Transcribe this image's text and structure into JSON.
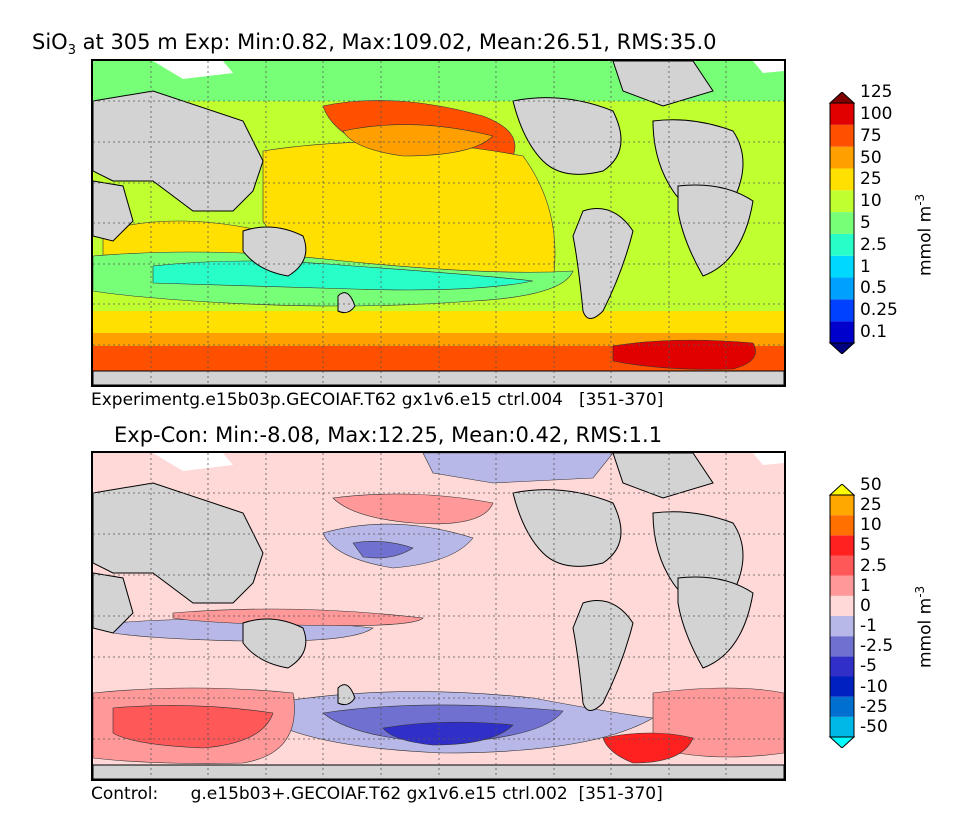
{
  "top_panel": {
    "title_species": "SiO",
    "title_sub": "3",
    "title_rest": " at 305 m Exp: Min:0.82, Max:109.02, Mean:26.51, RMS:35.0",
    "caption": "Experimentg.e15b03p.GECOIAF.T62 gx1v6.e15 ctrl.004   [351-370]",
    "colorbar": {
      "units_main": "mmol m",
      "units_sup": "-3",
      "levels": [
        "0.1",
        "0.25",
        "0.5",
        "1",
        "2.5",
        "5",
        "10",
        "25",
        "50",
        "75",
        "100",
        "125"
      ],
      "colors": [
        "#00007f",
        "#0000cc",
        "#0040ff",
        "#00a0ff",
        "#00d8ff",
        "#28ffc8",
        "#78ff78",
        "#c0ff30",
        "#ffe000",
        "#ffa000",
        "#ff5000",
        "#e00000",
        "#800000"
      ],
      "land_color": "#d3d3d3"
    }
  },
  "bottom_panel": {
    "title": "Exp-Con: Min:-8.08, Max:12.25, Mean:0.42, RMS:1.1",
    "caption": "Control:      g.e15b03+.GECOIAF.T62 gx1v6.e15 ctrl.002  [351-370]",
    "colorbar": {
      "units_main": "mmol m",
      "units_sup": "-3",
      "levels": [
        "-50",
        "-25",
        "-10",
        "-5",
        "-2.5",
        "-1",
        "0",
        "1",
        "2.5",
        "5",
        "10",
        "25",
        "50"
      ],
      "colors": [
        "#00ffff",
        "#00b8e8",
        "#0070d0",
        "#0020c0",
        "#3030c8",
        "#7070d0",
        "#b8b8e8",
        "#ffd8d8",
        "#ff9898",
        "#ff5858",
        "#ff2020",
        "#ff7000",
        "#ffa800",
        "#ffff00"
      ]
    }
  }
}
